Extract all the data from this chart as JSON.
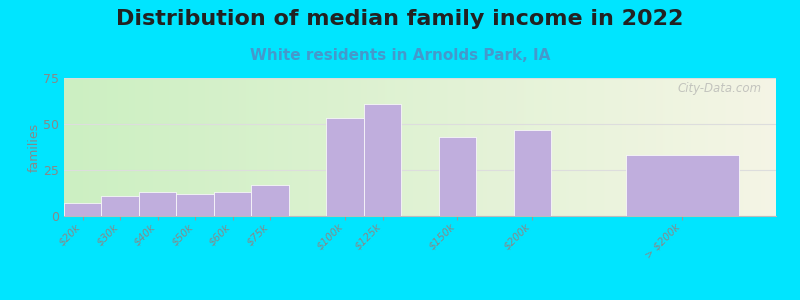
{
  "title": "Distribution of median family income in 2022",
  "subtitle": "White residents in Arnolds Park, IA",
  "ylabel": "families",
  "categories": [
    "$20k",
    "$30k",
    "$40k",
    "$50k",
    "$60k",
    "$75k",
    "$100k",
    "$125k",
    "$150k",
    "$200k",
    "> $200k"
  ],
  "values": [
    7,
    11,
    13,
    12,
    13,
    17,
    53,
    61,
    43,
    47,
    33
  ],
  "bar_positions": [
    0,
    1,
    2,
    3,
    4,
    5,
    7,
    8,
    10,
    12,
    15
  ],
  "bar_widths": [
    1,
    1,
    1,
    1,
    1,
    1,
    1,
    1,
    1,
    1,
    3
  ],
  "ylim": [
    0,
    75
  ],
  "yticks": [
    0,
    25,
    50,
    75
  ],
  "xlim": [
    -0.5,
    18.5
  ],
  "bar_color": "#c0aedd",
  "bar_edge_color": "#ffffff",
  "background_color": "#00e5ff",
  "plot_bg_tl_color": "#c8eec0",
  "plot_bg_tr_color": "#f0f0e0",
  "plot_bg_bl_color": "#c8eec0",
  "plot_bg_br_color": "#f8f8f0",
  "title_fontsize": 16,
  "subtitle_fontsize": 11,
  "subtitle_color": "#4499cc",
  "watermark": "City-Data.com",
  "grid_color": "#dddddd",
  "tick_label_color": "#888888",
  "ylabel_color": "#888888"
}
